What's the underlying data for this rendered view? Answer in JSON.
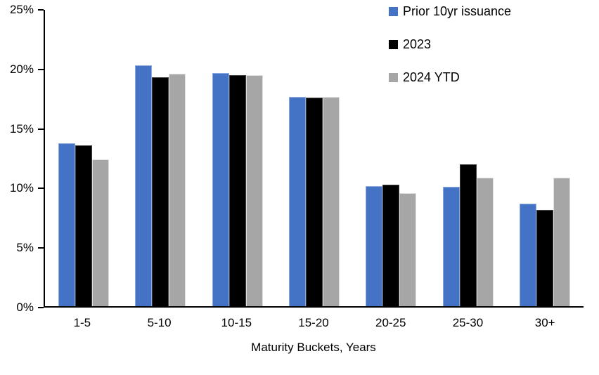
{
  "chart_data": {
    "type": "bar",
    "title": "",
    "xlabel": "Maturity Buckets, Years",
    "ylabel": "",
    "categories": [
      "1-5",
      "5-10",
      "10-15",
      "15-20",
      "20-25",
      "25-30",
      "30+"
    ],
    "series": [
      {
        "name": "Prior 10yr issuance",
        "color": "#4472C4",
        "border_color": "#8FAADC",
        "values": [
          13.7,
          20.2,
          19.6,
          17.6,
          10.1,
          10.0,
          8.6
        ]
      },
      {
        "name": "2023",
        "color": "#000000",
        "border_color": "#404040",
        "values": [
          13.5,
          19.2,
          19.4,
          17.5,
          10.2,
          11.9,
          8.1
        ]
      },
      {
        "name": "2024 YTD",
        "color": "#A6A6A6",
        "border_color": "#E0E0E0",
        "values": [
          12.3,
          19.5,
          19.4,
          17.6,
          9.5,
          10.8,
          10.8
        ]
      }
    ],
    "ylim": [
      0,
      25
    ],
    "yticks": [
      0,
      5,
      10,
      15,
      20,
      25
    ],
    "ytick_labels": [
      "0%",
      "5%",
      "10%",
      "15%",
      "20%",
      "25%"
    ],
    "grid": false,
    "legend_position": "top-right",
    "axis_color": "#000000",
    "background_color": "#FFFFFF"
  }
}
